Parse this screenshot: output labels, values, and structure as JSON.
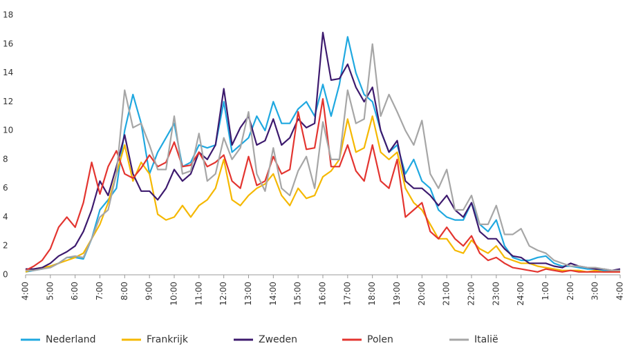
{
  "chart_data": {
    "type": "line",
    "categories": [
      "4:00",
      null,
      null,
      "5:00",
      null,
      null,
      "6:00",
      null,
      null,
      "7:00",
      null,
      null,
      "8:00",
      null,
      null,
      "9:00",
      null,
      null,
      "10:00",
      null,
      null,
      "11:00",
      null,
      null,
      "12:00",
      null,
      null,
      "13:00",
      null,
      null,
      "14:00",
      null,
      null,
      "15:00",
      null,
      null,
      "16:00",
      null,
      null,
      "17:00",
      null,
      null,
      "18:00",
      null,
      null,
      "19:00",
      null,
      null,
      "20:00",
      null,
      null,
      "21:00",
      null,
      null,
      "22:00",
      null,
      null,
      "23:00",
      null,
      null,
      "24:00",
      null,
      null,
      "1:00",
      null,
      null,
      "2:00",
      null,
      null,
      "3:00",
      null,
      null,
      "4:00"
    ],
    "series": [
      {
        "name": "Nederland",
        "color": "#1fa8e0",
        "values": [
          0.2,
          0.3,
          0.4,
          0.6,
          0.8,
          1.2,
          1.2,
          1.1,
          2.5,
          4.5,
          5.2,
          6,
          10,
          12.5,
          10.5,
          7,
          8.5,
          9.5,
          10.5,
          7.5,
          7.8,
          9,
          8.8,
          9,
          12,
          8.5,
          9,
          9.5,
          11,
          10,
          12,
          10.5,
          10.5,
          11.5,
          12,
          11,
          13.2,
          11,
          13.2,
          16.5,
          14,
          12.5,
          12,
          10,
          8.5,
          9,
          7,
          8,
          6.5,
          6,
          4.5,
          4,
          3.8,
          3.8,
          5,
          3.5,
          3,
          3.8,
          2,
          1.2,
          1,
          1,
          1.2,
          1.3,
          0.8,
          0.6,
          0.6,
          0.5,
          0.4,
          0.4,
          0.3,
          0.3,
          0.3
        ]
      },
      {
        "name": "Frankrijk",
        "color": "#f5b800",
        "values": [
          0.2,
          0.4,
          0.5,
          0.6,
          0.8,
          1,
          1.2,
          1.5,
          2.5,
          3.5,
          5,
          7,
          9,
          6.5,
          7.8,
          7,
          4.2,
          3.8,
          4,
          4.8,
          4,
          4.8,
          5.2,
          6,
          8,
          5.2,
          4.8,
          5.5,
          6,
          6.3,
          7,
          5.5,
          4.8,
          6,
          5.3,
          5.5,
          6.8,
          7.2,
          8,
          10.8,
          8.5,
          8.8,
          11,
          8.5,
          8,
          8.5,
          6,
          5,
          4.5,
          3.5,
          2.5,
          2.5,
          1.7,
          1.5,
          2.4,
          1.8,
          1.5,
          2,
          1.2,
          1,
          0.8,
          0.8,
          0.6,
          0.5,
          0.4,
          0.3,
          0.3,
          0.3,
          0.2,
          0.3,
          0.2,
          0.2,
          0.2
        ]
      },
      {
        "name": "Zweden",
        "color": "#3d1a6e",
        "values": [
          0.4,
          0.4,
          0.5,
          0.8,
          1.3,
          1.6,
          2,
          3,
          4.5,
          6.5,
          5.5,
          7.5,
          9.7,
          7,
          5.8,
          5.8,
          5.2,
          6,
          7.3,
          6.5,
          7,
          8.5,
          8,
          9,
          12.9,
          9,
          10.2,
          11,
          9,
          9.3,
          10.8,
          9,
          9.5,
          10.8,
          10.2,
          10.5,
          16.8,
          13.5,
          13.6,
          14.6,
          13,
          12,
          13,
          10,
          8.5,
          9.3,
          6.5,
          6,
          6,
          5.5,
          4.8,
          5.5,
          4.5,
          4,
          5,
          3,
          2.5,
          2.5,
          1.8,
          1.3,
          1.2,
          0.8,
          0.8,
          0.8,
          0.6,
          0.5,
          0.8,
          0.6,
          0.5,
          0.4,
          0.4,
          0.3,
          0.4
        ]
      },
      {
        "name": "Polen",
        "color": "#e3342f",
        "values": [
          0.3,
          0.6,
          1,
          1.8,
          3.3,
          4,
          3.3,
          5,
          7.8,
          5.6,
          7.5,
          8.6,
          7,
          6.7,
          7.4,
          8.3,
          7.5,
          7.8,
          9.2,
          7.5,
          7.6,
          8.5,
          7.5,
          7.8,
          8.3,
          6.5,
          6,
          8.2,
          6.2,
          6.5,
          8.2,
          7,
          7.3,
          11.3,
          8.7,
          8.8,
          12.2,
          7.5,
          7.5,
          9,
          7.2,
          6.5,
          9,
          6.5,
          6,
          8,
          4,
          4.5,
          5,
          3,
          2.5,
          3.3,
          2.5,
          2,
          2.7,
          1.5,
          1,
          1.2,
          0.8,
          0.5,
          0.4,
          0.3,
          0.2,
          0.4,
          0.3,
          0.2,
          0.3,
          0.2,
          0.2,
          0.2,
          0.2,
          0.2,
          0.2
        ]
      },
      {
        "name": "Italië",
        "color": "#a6a6a6",
        "values": [
          0.3,
          0.3,
          0.4,
          0.5,
          0.8,
          1.2,
          1.3,
          1.2,
          2.5,
          4,
          4.5,
          7,
          12.8,
          10.2,
          10.5,
          9,
          7.3,
          7.3,
          11,
          7,
          7.2,
          9.8,
          6.5,
          7,
          9.5,
          8,
          8.8,
          11.3,
          7,
          5.8,
          8.8,
          6,
          5.5,
          7.2,
          8.2,
          6,
          10.6,
          8,
          8,
          12.8,
          10.5,
          10.8,
          16,
          11,
          12.5,
          11.3,
          10,
          9,
          10.7,
          7,
          6,
          7.3,
          4.5,
          4.5,
          5.5,
          3.5,
          3.5,
          4.8,
          2.8,
          2.8,
          3.2,
          2,
          1.7,
          1.5,
          1,
          0.8,
          0.6,
          0.6,
          0.5,
          0.5,
          0.4,
          0.3,
          0.3
        ]
      }
    ],
    "ylim": [
      0,
      18
    ],
    "yticks": [
      0,
      2,
      4,
      6,
      8,
      10,
      12,
      14,
      16,
      18
    ],
    "grid": false,
    "legend": "bottom"
  }
}
